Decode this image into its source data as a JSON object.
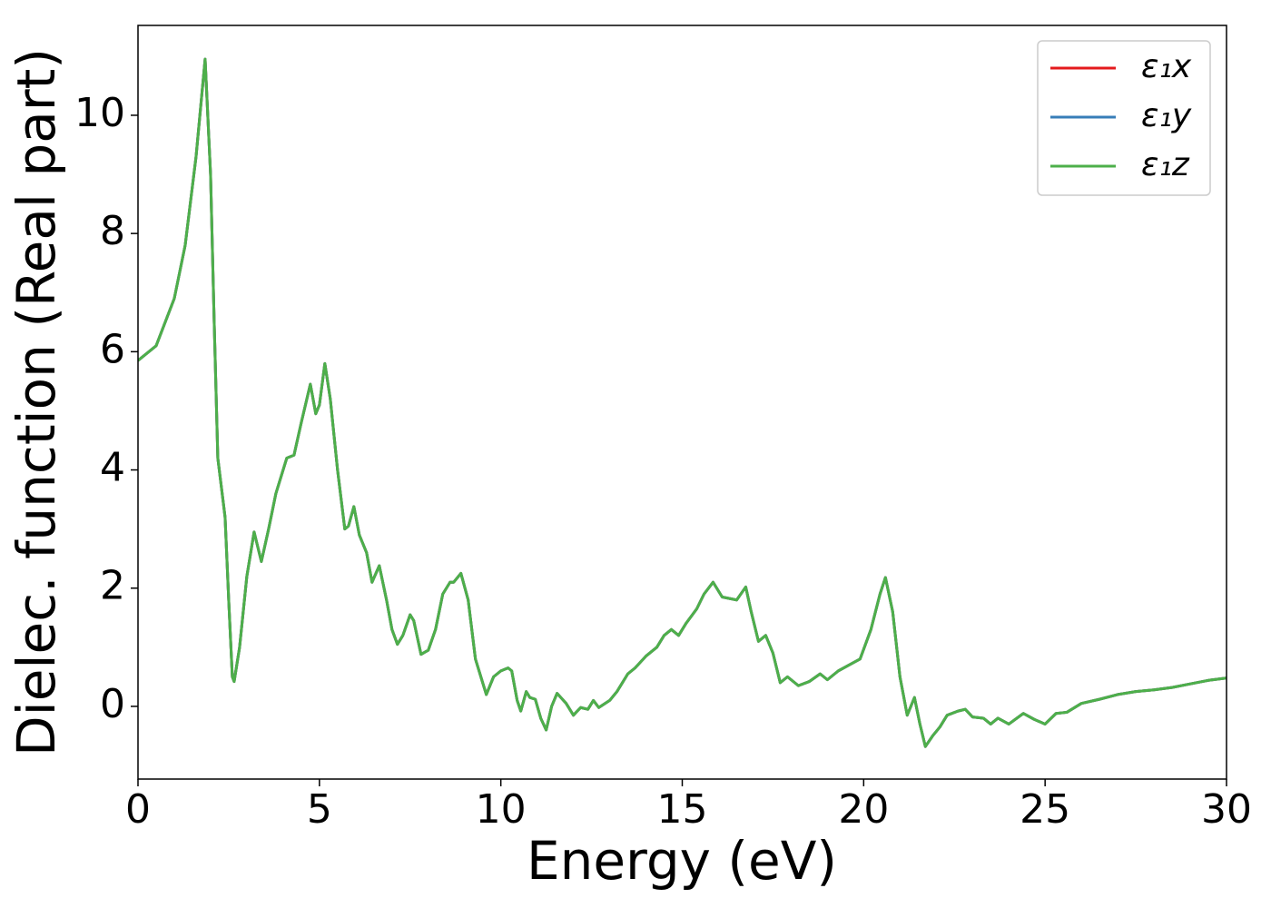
{
  "chart_data": {
    "type": "line",
    "xlabel": "Energy (eV)",
    "ylabel": "Dielec. function (Real part)",
    "xlim": [
      0,
      30
    ],
    "ylim": [
      -1.23,
      11.52
    ],
    "xticks": [
      0,
      5,
      10,
      15,
      20,
      25,
      30
    ],
    "yticks": [
      0,
      2,
      4,
      6,
      8,
      10
    ],
    "legend": "upper right",
    "x": [
      0,
      0.5,
      1.0,
      1.3,
      1.6,
      1.85,
      2.0,
      2.1,
      2.2,
      2.4,
      2.5,
      2.6,
      2.65,
      2.8,
      3.0,
      3.2,
      3.4,
      3.6,
      3.8,
      4.1,
      4.3,
      4.5,
      4.75,
      4.9,
      5.0,
      5.15,
      5.3,
      5.5,
      5.7,
      5.8,
      5.95,
      6.1,
      6.3,
      6.45,
      6.65,
      6.85,
      7.0,
      7.15,
      7.3,
      7.5,
      7.6,
      7.8,
      8.0,
      8.2,
      8.4,
      8.6,
      8.7,
      8.9,
      9.1,
      9.3,
      9.5,
      9.6,
      9.8,
      10.0,
      10.2,
      10.3,
      10.45,
      10.55,
      10.7,
      10.8,
      10.95,
      11.1,
      11.25,
      11.4,
      11.55,
      11.8,
      12.0,
      12.2,
      12.4,
      12.55,
      12.7,
      13.0,
      13.2,
      13.5,
      13.7,
      14.0,
      14.3,
      14.5,
      14.7,
      14.9,
      15.1,
      15.4,
      15.6,
      15.85,
      16.1,
      16.5,
      16.75,
      16.9,
      17.1,
      17.3,
      17.5,
      17.7,
      17.9,
      18.2,
      18.5,
      18.8,
      19.0,
      19.3,
      19.6,
      19.9,
      20.2,
      20.45,
      20.6,
      20.8,
      21.0,
      21.2,
      21.4,
      21.55,
      21.7,
      21.9,
      22.1,
      22.3,
      22.6,
      22.8,
      23.0,
      23.3,
      23.5,
      23.7,
      24.0,
      24.4,
      24.7,
      25.0,
      25.3,
      25.6,
      26.0,
      26.5,
      27.0,
      27.5,
      28.0,
      28.5,
      29.0,
      29.5,
      30.0
    ],
    "series": [
      {
        "name": "ε₁x",
        "color": "#e41a1c",
        "values": [
          5.85,
          6.1,
          6.9,
          7.8,
          9.3,
          10.95,
          9.0,
          6.5,
          4.2,
          3.2,
          1.8,
          0.5,
          0.42,
          1.0,
          2.2,
          2.95,
          2.45,
          3.0,
          3.6,
          4.2,
          4.25,
          4.8,
          5.45,
          4.95,
          5.1,
          5.8,
          5.2,
          4.0,
          3.0,
          3.05,
          3.38,
          2.9,
          2.6,
          2.1,
          2.38,
          1.8,
          1.3,
          1.05,
          1.2,
          1.55,
          1.45,
          0.88,
          0.95,
          1.3,
          1.9,
          2.1,
          2.1,
          2.25,
          1.8,
          0.8,
          0.4,
          0.2,
          0.5,
          0.6,
          0.65,
          0.6,
          0.1,
          -0.08,
          0.25,
          0.15,
          0.12,
          -0.2,
          -0.4,
          0.0,
          0.22,
          0.05,
          -0.15,
          -0.02,
          -0.05,
          0.1,
          -0.02,
          0.1,
          0.25,
          0.55,
          0.65,
          0.85,
          1.0,
          1.2,
          1.3,
          1.2,
          1.4,
          1.65,
          1.9,
          2.1,
          1.85,
          1.8,
          2.02,
          1.6,
          1.1,
          1.2,
          0.9,
          0.4,
          0.5,
          0.35,
          0.42,
          0.55,
          0.45,
          0.6,
          0.7,
          0.8,
          1.3,
          1.9,
          2.18,
          1.6,
          0.5,
          -0.15,
          0.15,
          -0.3,
          -0.68,
          -0.5,
          -0.35,
          -0.15,
          -0.08,
          -0.05,
          -0.18,
          -0.2,
          -0.3,
          -0.2,
          -0.3,
          -0.12,
          -0.22,
          -0.3,
          -0.12,
          -0.1,
          0.05,
          0.12,
          0.2,
          0.25,
          0.28,
          0.32,
          0.38,
          0.44,
          0.48
        ]
      },
      {
        "name": "ε₁y",
        "color": "#377eb8",
        "values": [
          5.85,
          6.1,
          6.9,
          7.8,
          9.3,
          10.95,
          9.0,
          6.5,
          4.2,
          3.2,
          1.8,
          0.5,
          0.42,
          1.0,
          2.2,
          2.95,
          2.45,
          3.0,
          3.6,
          4.2,
          4.25,
          4.8,
          5.45,
          4.95,
          5.1,
          5.8,
          5.2,
          4.0,
          3.0,
          3.05,
          3.38,
          2.9,
          2.6,
          2.1,
          2.38,
          1.8,
          1.3,
          1.05,
          1.2,
          1.55,
          1.45,
          0.88,
          0.95,
          1.3,
          1.9,
          2.1,
          2.1,
          2.25,
          1.8,
          0.8,
          0.4,
          0.2,
          0.5,
          0.6,
          0.65,
          0.6,
          0.1,
          -0.08,
          0.25,
          0.15,
          0.12,
          -0.2,
          -0.4,
          0.0,
          0.22,
          0.05,
          -0.15,
          -0.02,
          -0.05,
          0.1,
          -0.02,
          0.1,
          0.25,
          0.55,
          0.65,
          0.85,
          1.0,
          1.2,
          1.3,
          1.2,
          1.4,
          1.65,
          1.9,
          2.1,
          1.85,
          1.8,
          2.02,
          1.6,
          1.1,
          1.2,
          0.9,
          0.4,
          0.5,
          0.35,
          0.42,
          0.55,
          0.45,
          0.6,
          0.7,
          0.8,
          1.3,
          1.9,
          2.18,
          1.6,
          0.5,
          -0.15,
          0.15,
          -0.3,
          -0.68,
          -0.5,
          -0.35,
          -0.15,
          -0.08,
          -0.05,
          -0.18,
          -0.2,
          -0.3,
          -0.2,
          -0.3,
          -0.12,
          -0.22,
          -0.3,
          -0.12,
          -0.1,
          0.05,
          0.12,
          0.2,
          0.25,
          0.28,
          0.32,
          0.38,
          0.44,
          0.48
        ]
      },
      {
        "name": "ε₁z",
        "color": "#4daf4a",
        "values": [
          5.85,
          6.1,
          6.9,
          7.8,
          9.3,
          10.95,
          9.0,
          6.5,
          4.2,
          3.2,
          1.8,
          0.5,
          0.42,
          1.0,
          2.2,
          2.95,
          2.45,
          3.0,
          3.6,
          4.2,
          4.25,
          4.8,
          5.45,
          4.95,
          5.1,
          5.8,
          5.2,
          4.0,
          3.0,
          3.05,
          3.38,
          2.9,
          2.6,
          2.1,
          2.38,
          1.8,
          1.3,
          1.05,
          1.2,
          1.55,
          1.45,
          0.88,
          0.95,
          1.3,
          1.9,
          2.1,
          2.1,
          2.25,
          1.8,
          0.8,
          0.4,
          0.2,
          0.5,
          0.6,
          0.65,
          0.6,
          0.1,
          -0.08,
          0.25,
          0.15,
          0.12,
          -0.2,
          -0.4,
          0.0,
          0.22,
          0.05,
          -0.15,
          -0.02,
          -0.05,
          0.1,
          -0.02,
          0.1,
          0.25,
          0.55,
          0.65,
          0.85,
          1.0,
          1.2,
          1.3,
          1.2,
          1.4,
          1.65,
          1.9,
          2.1,
          1.85,
          1.8,
          2.02,
          1.6,
          1.1,
          1.2,
          0.9,
          0.4,
          0.5,
          0.35,
          0.42,
          0.55,
          0.45,
          0.6,
          0.7,
          0.8,
          1.3,
          1.9,
          2.18,
          1.6,
          0.5,
          -0.15,
          0.15,
          -0.3,
          -0.68,
          -0.5,
          -0.35,
          -0.15,
          -0.08,
          -0.05,
          -0.18,
          -0.2,
          -0.3,
          -0.2,
          -0.3,
          -0.12,
          -0.22,
          -0.3,
          -0.12,
          -0.1,
          0.05,
          0.12,
          0.2,
          0.25,
          0.28,
          0.32,
          0.38,
          0.44,
          0.48
        ]
      }
    ]
  }
}
